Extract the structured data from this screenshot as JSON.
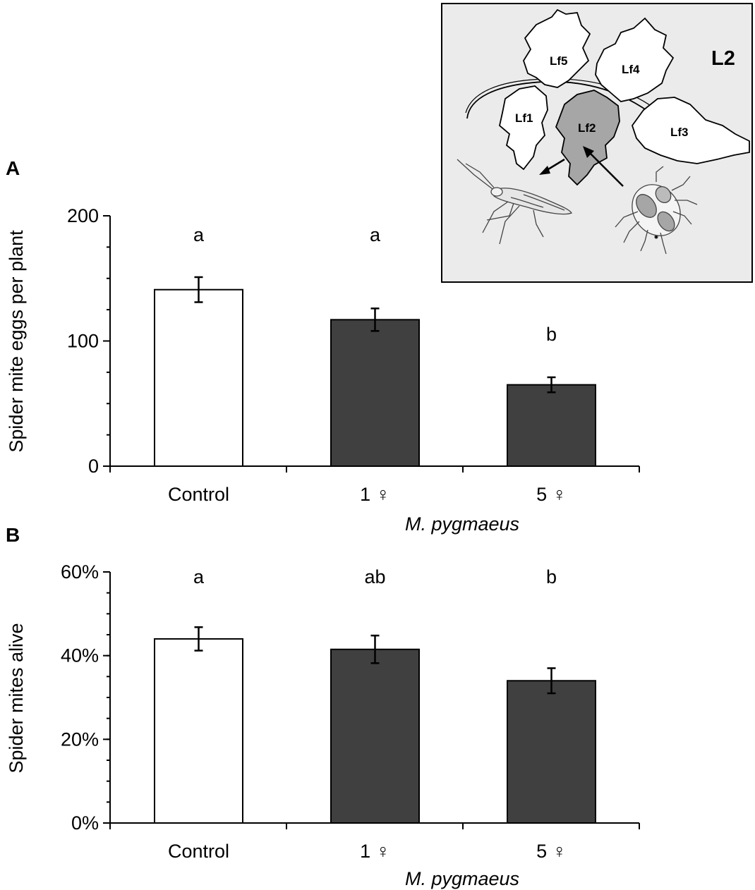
{
  "chart_data": [
    {
      "type": "bar",
      "panel": "A",
      "categories": [
        "Control",
        "1 ♀",
        "5 ♀"
      ],
      "values": [
        141,
        117,
        65
      ],
      "errors": [
        10,
        9,
        6
      ],
      "significance": [
        "a",
        "a",
        "b"
      ],
      "bar_colors": [
        "#ffffff",
        "#404040",
        "#404040"
      ],
      "ylabel": "Spider mite eggs per plant",
      "xlabel": "M. pygmaeus",
      "ylim": [
        0,
        200
      ],
      "yticks": [
        0,
        100,
        200
      ],
      "ytick_labels": [
        "0",
        "100",
        "200"
      ],
      "yminor_step": 25
    },
    {
      "type": "bar",
      "panel": "B",
      "categories": [
        "Control",
        "1 ♀",
        "5 ♀"
      ],
      "values": [
        44,
        41.5,
        34
      ],
      "errors": [
        2.8,
        3.3,
        3.0
      ],
      "significance": [
        "a",
        "ab",
        "b"
      ],
      "bar_colors": [
        "#ffffff",
        "#404040",
        "#404040"
      ],
      "ylabel": "Spider mites alive",
      "xlabel": "M. pygmaeus",
      "ylim": [
        0,
        60
      ],
      "yticks": [
        0,
        20,
        40,
        60
      ],
      "ytick_labels": [
        "0%",
        "20%",
        "40%",
        "60%"
      ],
      "yminor_step": 5
    }
  ],
  "inset": {
    "title": "L2",
    "leaves": [
      "Lf1",
      "Lf2",
      "Lf3",
      "Lf4",
      "Lf5"
    ],
    "highlight_leaf": "Lf2",
    "background": "#ebebeb",
    "highlight_color": "#a6a6a6"
  }
}
